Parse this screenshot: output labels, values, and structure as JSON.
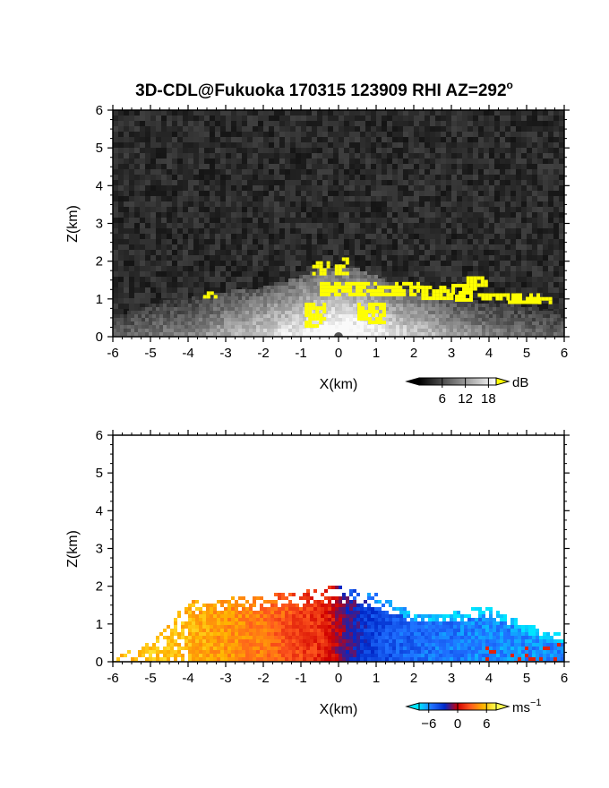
{
  "figure": {
    "title_main": "3D-CDL@Fukuoka 170315 123909 RHI AZ=292",
    "title_sup": "o"
  },
  "chart_data": [
    {
      "type": "heatmap",
      "name": "snr-panel",
      "xlabel": "X(km)",
      "ylabel": "Z(km)",
      "xlim": [
        -6,
        6
      ],
      "ylim": [
        0,
        6
      ],
      "xticks": [
        "-6",
        "-5",
        "-4",
        "-3",
        "-2",
        "-1",
        "0",
        "1",
        "2",
        "3",
        "4",
        "5",
        "6"
      ],
      "yticks": [
        "0",
        "1",
        "2",
        "3",
        "4",
        "5",
        "6"
      ],
      "background_color": "#1e1e1e",
      "colorbar": {
        "unit": "dB",
        "ticks": [
          "6",
          "12",
          "18"
        ],
        "range": [
          0,
          20
        ],
        "overflow_color": "#ffff00",
        "colors": [
          "#000000",
          "#ffffff"
        ]
      },
      "echo_profile": {
        "x": [
          -6,
          -5,
          -4,
          -3,
          -2,
          -1,
          -0.5,
          0,
          0.5,
          1,
          2,
          3,
          4,
          5,
          6
        ],
        "top": [
          0.5,
          0.9,
          1.0,
          1.2,
          1.3,
          1.6,
          1.8,
          1.9,
          1.8,
          1.6,
          1.2,
          1.0,
          0.9,
          0.8,
          0.6
        ]
      },
      "overflow_regions": [
        {
          "x": [
            -0.7,
            -0.3
          ],
          "z": [
            1.7,
            2.0
          ]
        },
        {
          "x": [
            -0.1,
            0.2
          ],
          "z": [
            1.7,
            2.1
          ]
        },
        {
          "x": [
            -0.5,
            2.2
          ],
          "z": [
            1.15,
            1.45
          ]
        },
        {
          "x": [
            2.2,
            3.0
          ],
          "z": [
            1.05,
            1.35
          ]
        },
        {
          "x": [
            3.0,
            3.5
          ],
          "z": [
            1.0,
            1.4
          ]
        },
        {
          "x": [
            3.4,
            3.9
          ],
          "z": [
            1.3,
            1.6
          ]
        },
        {
          "x": [
            3.7,
            4.5
          ],
          "z": [
            1.0,
            1.15
          ]
        },
        {
          "x": [
            4.5,
            5.3
          ],
          "z": [
            0.95,
            1.15
          ]
        },
        {
          "x": [
            5.3,
            5.6
          ],
          "z": [
            0.9,
            1.05
          ]
        },
        {
          "x": [
            -0.9,
            -0.4
          ],
          "z": [
            0.3,
            0.9
          ]
        },
        {
          "x": [
            0.5,
            1.2
          ],
          "z": [
            0.4,
            0.9
          ]
        },
        {
          "x": [
            -3.6,
            -3.3
          ],
          "z": [
            1.1,
            1.2
          ]
        }
      ]
    },
    {
      "type": "heatmap",
      "name": "velocity-panel",
      "xlabel": "X(km)",
      "ylabel": "Z(km)",
      "xlim": [
        -6,
        6
      ],
      "ylim": [
        0,
        6
      ],
      "xticks": [
        "-6",
        "-5",
        "-4",
        "-3",
        "-2",
        "-1",
        "0",
        "1",
        "2",
        "3",
        "4",
        "5",
        "6"
      ],
      "yticks": [
        "0",
        "1",
        "2",
        "3",
        "4",
        "5",
        "6"
      ],
      "background_color": "#ffffff",
      "colorbar": {
        "unit": "ms",
        "unit_sup": "−1",
        "ticks": [
          "−6",
          "0",
          "6"
        ],
        "range": [
          -8,
          8
        ],
        "colors": [
          "#00e5ff",
          "#1f6fff",
          "#0028c8",
          "#d00000",
          "#ff5a1e",
          "#ffb400",
          "#ffff50"
        ]
      },
      "echo_profile": {
        "x": [
          -6,
          -5,
          -4,
          -3,
          -2,
          -1,
          -0.5,
          0,
          0.5,
          1,
          2,
          3,
          4,
          5,
          6
        ],
        "top": [
          0.1,
          0.5,
          1.6,
          1.7,
          1.75,
          1.85,
          1.95,
          2.0,
          1.9,
          1.8,
          1.3,
          1.3,
          1.5,
          1.0,
          0.7
        ]
      },
      "velocity_profile": {
        "x": [
          -6,
          -5,
          -4,
          -3,
          -2,
          -1,
          -0.3,
          0.3,
          1,
          2,
          3,
          4,
          5,
          6
        ],
        "v": [
          6,
          6,
          5.5,
          4.5,
          3.5,
          2,
          1,
          -2,
          -4,
          -5,
          -5.5,
          -6,
          -6,
          -6
        ]
      }
    }
  ]
}
